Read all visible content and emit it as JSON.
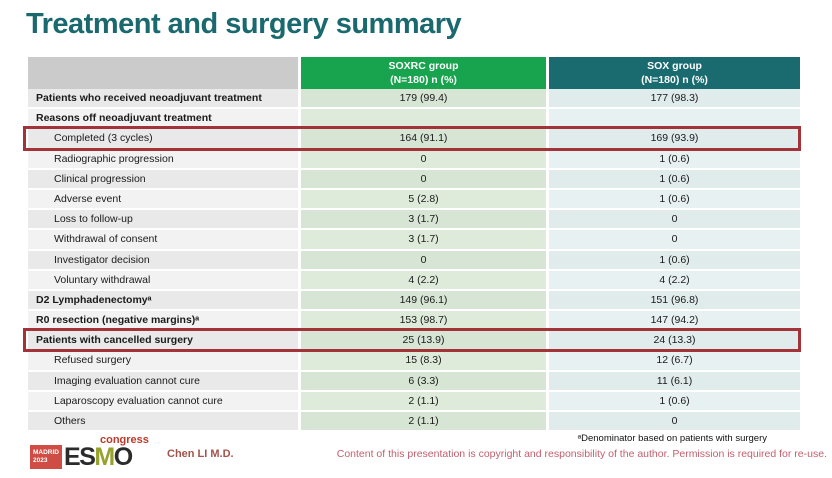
{
  "slide": {
    "title": "Treatment and surgery summary",
    "presenter": "Chen LI M.D.",
    "footnote": "ᵃDenominator based on patients with surgery",
    "copyright_notice": "Content of this presentation is copyright and responsibility of the author. Permission is required for re-use."
  },
  "logo": {
    "city": "MADRID",
    "year": "2023",
    "letters": [
      "E",
      "S",
      "M",
      "O"
    ],
    "event": "congress"
  },
  "colors": {
    "title_teal": "#19696f",
    "soxrc_header_green": "#18a34e",
    "sox_header_teal": "#1a6b70",
    "highlight_red": "#a23439",
    "copyright_rose": "#c2606e",
    "presenter_red": "#a1544b",
    "logo_red": "#cf4d44",
    "logo_olive": "#97a22c"
  },
  "table": {
    "columns": [
      {
        "label": "",
        "sublabel": ""
      },
      {
        "label": "SOXRC group",
        "sublabel": "(N=180)  n (%)"
      },
      {
        "label": "SOX group",
        "sublabel": "(N=180)  n (%)"
      }
    ],
    "rows": [
      {
        "label": "Patients who received neoadjuvant treatment",
        "soxrc": "179 (99.4)",
        "sox": "177 (98.3)",
        "bold": true,
        "indent": false,
        "highlight": false
      },
      {
        "label": "Reasons off neoadjuvant treatment",
        "soxrc": "",
        "sox": "",
        "bold": true,
        "indent": false,
        "highlight": false
      },
      {
        "label": "Completed (3 cycles)",
        "soxrc": "164 (91.1)",
        "sox": "169 (93.9)",
        "bold": false,
        "indent": true,
        "highlight": true
      },
      {
        "label": "Radiographic progression",
        "soxrc": "0",
        "sox": "1 (0.6)",
        "bold": false,
        "indent": true,
        "highlight": false
      },
      {
        "label": "Clinical progression",
        "soxrc": "0",
        "sox": "1 (0.6)",
        "bold": false,
        "indent": true,
        "highlight": false
      },
      {
        "label": "Adverse event",
        "soxrc": "5 (2.8)",
        "sox": "1 (0.6)",
        "bold": false,
        "indent": true,
        "highlight": false
      },
      {
        "label": "Loss to follow-up",
        "soxrc": "3 (1.7)",
        "sox": "0",
        "bold": false,
        "indent": true,
        "highlight": false
      },
      {
        "label": "Withdrawal of consent",
        "soxrc": "3 (1.7)",
        "sox": "0",
        "bold": false,
        "indent": true,
        "highlight": false
      },
      {
        "label": "Investigator decision",
        "soxrc": "0",
        "sox": "1 (0.6)",
        "bold": false,
        "indent": true,
        "highlight": false
      },
      {
        "label": "Voluntary withdrawal",
        "soxrc": "4 (2.2)",
        "sox": "4 (2.2)",
        "bold": false,
        "indent": true,
        "highlight": false
      },
      {
        "label": "D2 Lymphadenectomyᵃ",
        "soxrc": "149 (96.1)",
        "sox": "151 (96.8)",
        "bold": true,
        "indent": false,
        "highlight": false
      },
      {
        "label": "R0 resection (negative margins)ᵃ",
        "soxrc": "153 (98.7)",
        "sox": "147 (94.2)",
        "bold": true,
        "indent": false,
        "highlight": false
      },
      {
        "label": "Patients with cancelled surgery",
        "soxrc": "25 (13.9)",
        "sox": "24 (13.3)",
        "bold": true,
        "indent": false,
        "highlight": true
      },
      {
        "label": "Refused surgery",
        "soxrc": "15 (8.3)",
        "sox": "12 (6.7)",
        "bold": false,
        "indent": true,
        "highlight": false
      },
      {
        "label": "Imaging evaluation cannot cure",
        "soxrc": "6 (3.3)",
        "sox": "11 (6.1)",
        "bold": false,
        "indent": true,
        "highlight": false
      },
      {
        "label": "Laparoscopy evaluation cannot cure",
        "soxrc": "2 (1.1)",
        "sox": "1 (0.6)",
        "bold": false,
        "indent": true,
        "highlight": false
      },
      {
        "label": "Others",
        "soxrc": "2 (1.1)",
        "sox": "0",
        "bold": false,
        "indent": true,
        "highlight": false
      }
    ]
  }
}
